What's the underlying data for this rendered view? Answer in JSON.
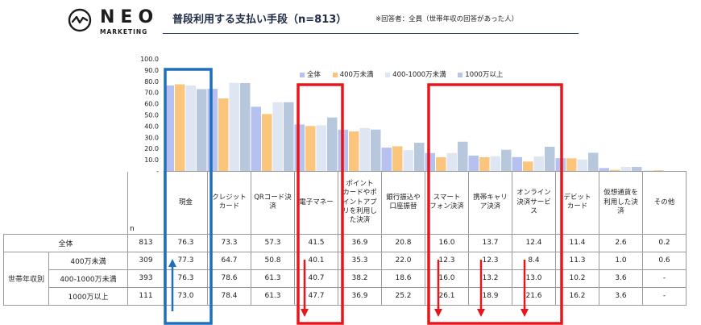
{
  "brand": {
    "name": "NEO",
    "sub": "MARKETING"
  },
  "header": {
    "title": "普段利用する支払い手段（n=813）",
    "note": "※回答者：全員（世帯年収の回答があった人）"
  },
  "colors": {
    "all": "#b6c1ef",
    "under400": "#fbc57e",
    "mid": "#dde6f2",
    "over1000": "#b7c7dc",
    "blue": "#1f6fbf",
    "red": "#e8161b"
  },
  "chart_data": {
    "type": "bar",
    "ylim": [
      0,
      100
    ],
    "ytick_labels": [
      "100.0",
      "90.0",
      "80.0",
      "70.0",
      "60.0",
      "50.0",
      "40.0",
      "30.0",
      "20.0",
      "10.0",
      "-"
    ],
    "categories": [
      "現金",
      "クレジットカード",
      "QRコード決済",
      "電子マネー",
      "ポイントカードやポイントアプリを利用した決済",
      "銀行振込や口座振替",
      "スマートフォン決済",
      "携帯キャリア決済",
      "オンライン決済サービス",
      "デビットカード",
      "仮想通貨を利用した決済",
      "その他"
    ],
    "series": [
      {
        "name": "全体",
        "values": [
          76.3,
          73.3,
          57.3,
          41.5,
          36.9,
          20.8,
          16.0,
          13.7,
          12.4,
          11.4,
          2.6,
          0.2
        ]
      },
      {
        "name": "400万未満",
        "values": [
          77.3,
          64.7,
          50.8,
          40.1,
          35.3,
          22.0,
          12.3,
          12.3,
          8.4,
          11.3,
          1.0,
          0.6
        ]
      },
      {
        "name": "400-1000万未満",
        "values": [
          76.3,
          78.6,
          61.3,
          40.7,
          38.2,
          18.6,
          16.0,
          13.2,
          13.0,
          10.2,
          3.6,
          0
        ]
      },
      {
        "name": "1000万以上",
        "values": [
          73.0,
          78.4,
          61.3,
          47.7,
          36.9,
          25.2,
          26.1,
          18.9,
          21.6,
          16.2,
          3.6,
          0
        ]
      }
    ]
  },
  "table": {
    "n_label": "n",
    "headers": [
      "現金",
      "クレジット\nカード",
      "QRコード決\n済",
      "電子マネー",
      "ポイント\nカードやポ\nイントアプ\nリを利用し\nた決済",
      "銀行振込や\n口座振替",
      "スマート\nフォン決済",
      "携帯キャリ\nア決済",
      "オンライン\n決済サービ\nス",
      "デビット\nカード",
      "仮想通貨を\n利用した決\n済",
      "その他"
    ],
    "group_label": "世帯年収別",
    "rows": [
      {
        "label": "全体",
        "n": "813",
        "values": [
          "76.3",
          "73.3",
          "57.3",
          "41.5",
          "36.9",
          "20.8",
          "16.0",
          "13.7",
          "12.4",
          "11.4",
          "2.6",
          "0.2"
        ]
      },
      {
        "label": "400万未満",
        "n": "309",
        "values": [
          "77.3",
          "64.7",
          "50.8",
          "40.1",
          "35.3",
          "22.0",
          "12.3",
          "12.3",
          "8.4",
          "11.3",
          "1.0",
          "0.6"
        ]
      },
      {
        "label": "400-1000万未満",
        "n": "393",
        "values": [
          "76.3",
          "78.6",
          "61.3",
          "40.7",
          "38.2",
          "18.6",
          "16.0",
          "13.2",
          "13.0",
          "10.2",
          "3.6",
          "-"
        ]
      },
      {
        "label": "1000万以上",
        "n": "111",
        "values": [
          "73.0",
          "78.4",
          "61.3",
          "47.7",
          "36.9",
          "25.2",
          "26.1",
          "18.9",
          "21.6",
          "16.2",
          "3.6",
          "-"
        ]
      }
    ]
  }
}
